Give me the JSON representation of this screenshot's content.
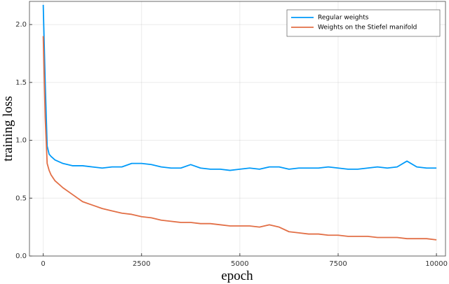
{
  "chart_data": {
    "type": "line",
    "xlabel": "epoch",
    "ylabel": "training loss",
    "x": [
      0,
      50,
      100,
      150,
      200,
      300,
      500,
      750,
      1000,
      1250,
      1500,
      1750,
      2000,
      2250,
      2500,
      2750,
      3000,
      3250,
      3500,
      3750,
      4000,
      4250,
      4500,
      4750,
      5000,
      5250,
      5500,
      5750,
      6000,
      6250,
      6500,
      6750,
      7000,
      7250,
      7500,
      7750,
      8000,
      8250,
      8500,
      8750,
      9000,
      9250,
      9500,
      9750,
      10000
    ],
    "series": [
      {
        "name": "Regular weights",
        "color": "#009af9",
        "values": [
          2.17,
          1.5,
          0.95,
          0.88,
          0.86,
          0.83,
          0.8,
          0.78,
          0.78,
          0.77,
          0.76,
          0.77,
          0.77,
          0.8,
          0.8,
          0.79,
          0.77,
          0.76,
          0.76,
          0.79,
          0.76,
          0.75,
          0.75,
          0.74,
          0.75,
          0.76,
          0.75,
          0.77,
          0.77,
          0.75,
          0.76,
          0.76,
          0.76,
          0.77,
          0.76,
          0.75,
          0.75,
          0.76,
          0.77,
          0.76,
          0.77,
          0.82,
          0.77,
          0.76,
          0.76
        ]
      },
      {
        "name": "Weights on the Stiefel manifold",
        "color": "#e26f46",
        "values": [
          1.9,
          1.2,
          0.8,
          0.74,
          0.7,
          0.65,
          0.59,
          0.53,
          0.47,
          0.44,
          0.41,
          0.39,
          0.37,
          0.36,
          0.34,
          0.33,
          0.31,
          0.3,
          0.29,
          0.29,
          0.28,
          0.28,
          0.27,
          0.26,
          0.26,
          0.26,
          0.25,
          0.27,
          0.25,
          0.21,
          0.2,
          0.19,
          0.19,
          0.18,
          0.18,
          0.17,
          0.17,
          0.17,
          0.16,
          0.16,
          0.16,
          0.15,
          0.15,
          0.15,
          0.14
        ]
      }
    ],
    "xlim": [
      -350,
      10230
    ],
    "ylim": [
      0,
      2.2
    ],
    "xticks": [
      0,
      2500,
      5000,
      7500,
      10000
    ],
    "yticks": [
      {
        "value": 0,
        "label": "0.0"
      },
      {
        "value": 0.5,
        "label": "0.5"
      },
      {
        "value": 1,
        "label": "1.0"
      },
      {
        "value": 1.5,
        "label": "1.5"
      },
      {
        "value": 2,
        "label": "2.0"
      }
    ],
    "grid": true,
    "legend": "top-right"
  }
}
